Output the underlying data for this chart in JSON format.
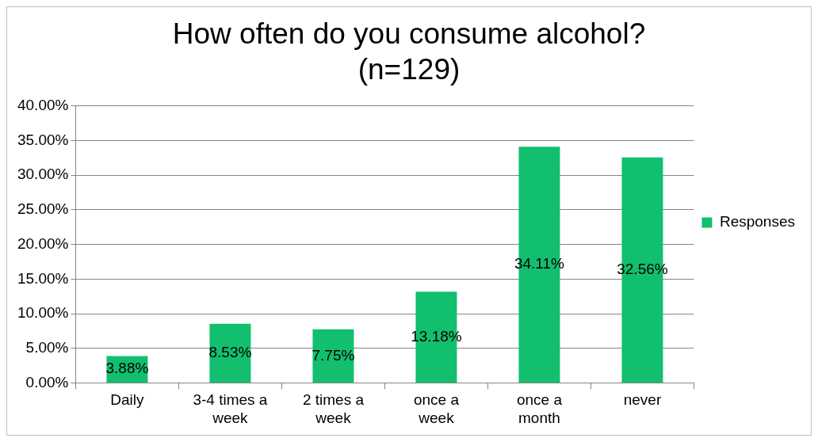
{
  "chart_data": {
    "type": "bar",
    "title": "How often do you consume alcohol?\n(n=129)",
    "categories": [
      "Daily",
      "3-4 times a week",
      "2 times a week",
      "once a week",
      "once a month",
      "never"
    ],
    "series": [
      {
        "name": "Responses",
        "color": "#12bf6e",
        "values": [
          3.88,
          8.53,
          7.75,
          13.18,
          34.11,
          32.56
        ],
        "value_labels": [
          "3.88%",
          "8.53%",
          "7.75%",
          "13.18%",
          "34.11%",
          "32.56%"
        ]
      }
    ],
    "ylim": [
      0,
      40
    ],
    "yticks": [
      {
        "value": 0,
        "label": "0.00%"
      },
      {
        "value": 5,
        "label": "5.00%"
      },
      {
        "value": 10,
        "label": "10.00%"
      },
      {
        "value": 15,
        "label": "15.00%"
      },
      {
        "value": 20,
        "label": "20.00%"
      },
      {
        "value": 25,
        "label": "25.00%"
      },
      {
        "value": 30,
        "label": "30.00%"
      },
      {
        "value": 35,
        "label": "35.00%"
      },
      {
        "value": 40,
        "label": "40.00%"
      }
    ],
    "grid": "y",
    "legend": "right"
  }
}
